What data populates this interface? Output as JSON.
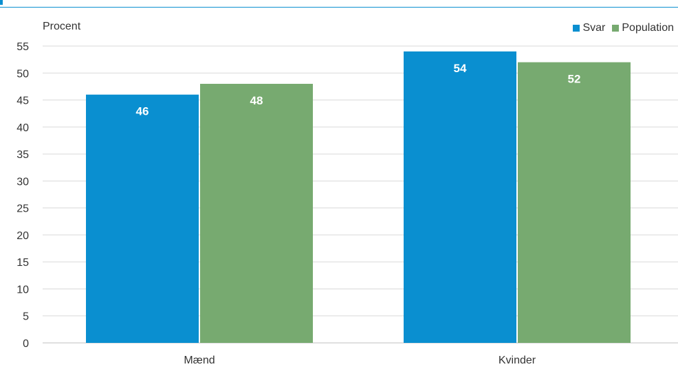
{
  "chart_data": {
    "type": "bar",
    "ylabel": "Procent",
    "categories": [
      "Mænd",
      "Kvinder"
    ],
    "series": [
      {
        "name": "Svar",
        "values": [
          46,
          54
        ],
        "color": "#0a8fd0"
      },
      {
        "name": "Population",
        "values": [
          48,
          52
        ],
        "color": "#77aa70"
      }
    ],
    "ylim": [
      0,
      55
    ],
    "yticks": [
      0,
      5,
      10,
      15,
      20,
      25,
      30,
      35,
      40,
      45,
      50,
      55
    ],
    "grid": true,
    "legend_position": "top-right",
    "bar_label_color": "#ffffff"
  }
}
